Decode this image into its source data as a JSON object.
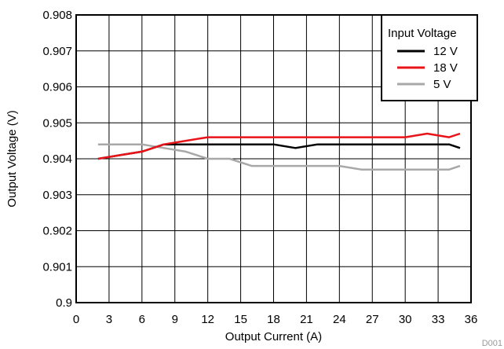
{
  "chart_data": {
    "type": "line",
    "xlabel": "Output Current (A)",
    "ylabel": "Output Voltage (V)",
    "xlim": [
      0,
      36
    ],
    "ylim": [
      0.9,
      0.908
    ],
    "xticks": [
      0,
      3,
      6,
      9,
      12,
      15,
      18,
      21,
      24,
      27,
      30,
      33,
      36
    ],
    "yticks": [
      0.9,
      0.901,
      0.902,
      0.903,
      0.904,
      0.905,
      0.906,
      0.907,
      0.908
    ],
    "xtick_labels": [
      "0",
      "3",
      "6",
      "9",
      "12",
      "15",
      "18",
      "21",
      "24",
      "27",
      "30",
      "33",
      "36"
    ],
    "ytick_labels": [
      "0.9",
      "0.901",
      "0.902",
      "0.903",
      "0.904",
      "0.905",
      "0.906",
      "0.907",
      "0.908"
    ],
    "grid": true,
    "legend": {
      "title": "Input Voltage",
      "position": "top-right"
    },
    "series": [
      {
        "name": "12 V",
        "color": "#000000",
        "x": [
          2,
          4,
          6,
          8,
          10,
          12,
          14,
          16,
          18,
          20,
          22,
          24,
          26,
          28,
          30,
          32,
          34,
          35
        ],
        "y": [
          0.904,
          0.9041,
          0.9042,
          0.9044,
          0.9044,
          0.9044,
          0.9044,
          0.9044,
          0.9044,
          0.9043,
          0.9044,
          0.9044,
          0.9044,
          0.9044,
          0.9044,
          0.9044,
          0.9044,
          0.9043
        ]
      },
      {
        "name": "18 V",
        "color": "#e8141a",
        "x": [
          2,
          4,
          6,
          8,
          10,
          12,
          14,
          16,
          18,
          20,
          22,
          24,
          26,
          28,
          30,
          32,
          34,
          35
        ],
        "y": [
          0.904,
          0.9041,
          0.9042,
          0.9044,
          0.9045,
          0.9046,
          0.9046,
          0.9046,
          0.9046,
          0.9046,
          0.9046,
          0.9046,
          0.9046,
          0.9046,
          0.9046,
          0.9047,
          0.9046,
          0.9047
        ]
      },
      {
        "name": "5 V",
        "color": "#a8a8a8",
        "x": [
          2,
          4,
          6,
          8,
          10,
          12,
          14,
          16,
          18,
          20,
          22,
          24,
          26,
          28,
          30,
          32,
          34,
          35
        ],
        "y": [
          0.9044,
          0.9044,
          0.9044,
          0.9043,
          0.9042,
          0.904,
          0.904,
          0.9038,
          0.9038,
          0.9038,
          0.9038,
          0.9038,
          0.9037,
          0.9037,
          0.9037,
          0.9037,
          0.9037,
          0.9038
        ]
      }
    ],
    "watermark": "D001"
  }
}
